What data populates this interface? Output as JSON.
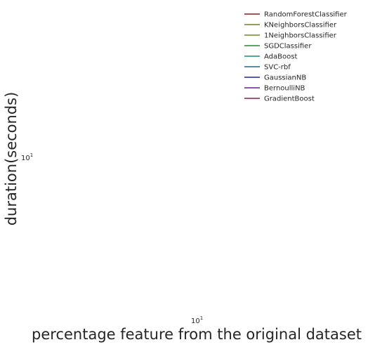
{
  "chart_data": {
    "type": "line",
    "title": "",
    "xlabel": "percentage feature from the original dataset",
    "ylabel": "duration(seconds)",
    "xscale": "log",
    "yscale": "log",
    "x_ticks": [
      {
        "base": "10",
        "exp": "1"
      }
    ],
    "y_ticks": [
      {
        "base": "10",
        "exp": "1"
      }
    ],
    "grid": false,
    "legend_position": "top-right",
    "series": [
      {
        "name": "RandomForestClassifier",
        "color": "#8b1a1a",
        "x": [],
        "y": []
      },
      {
        "name": "KNeighborsClassifier",
        "color": "#7f7a23",
        "x": [],
        "y": []
      },
      {
        "name": "1NeighborsClassifier",
        "color": "#6e8b1f",
        "x": [],
        "y": []
      },
      {
        "name": "SGDClassifier",
        "color": "#2a8a2a",
        "x": [],
        "y": []
      },
      {
        "name": "AdaBoost",
        "color": "#1a8f6e",
        "x": [],
        "y": []
      },
      {
        "name": "SVC-rbf",
        "color": "#1f6688",
        "x": [],
        "y": []
      },
      {
        "name": "GaussianNB",
        "color": "#1f2a8b",
        "x": [],
        "y": []
      },
      {
        "name": "BernoulliNB",
        "color": "#6a1f8b",
        "x": [],
        "y": []
      },
      {
        "name": "GradientBoost",
        "color": "#8b1a5a",
        "x": [],
        "y": []
      }
    ]
  }
}
